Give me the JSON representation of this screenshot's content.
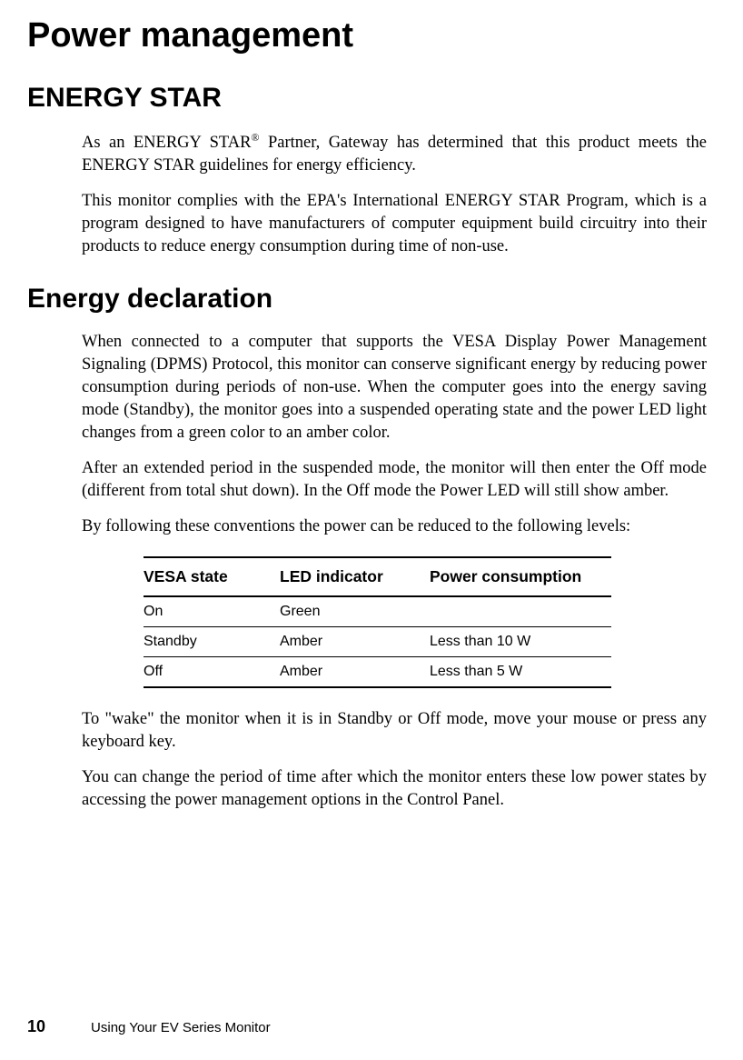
{
  "title": "Power management",
  "sections": {
    "energy_star": {
      "heading": "ENERGY STAR",
      "para1_pre": "As an ENERGY STAR",
      "para1_sup": "®",
      "para1_post": " Partner, Gateway has determined that this product meets the ENERGY STAR guidelines for energy efficiency.",
      "para2": "This monitor complies with the EPA's International ENERGY STAR Program, which is a program designed to have manufacturers of computer equipment build circuitry into their products to reduce energy consumption during time of non-use."
    },
    "energy_decl": {
      "heading": "Energy declaration",
      "para1": "When connected to a computer that supports the VESA Display Power Management Signaling (DPMS) Protocol, this monitor can conserve significant energy by reducing power consumption during periods of non-use. When the computer goes into the energy saving mode (Standby), the monitor goes into a suspended operating state and the power LED light changes from a green color to an amber color.",
      "para2": "After an extended period in the suspended mode, the monitor will then enter the Off mode (different from total shut down). In the Off mode the Power LED will still show amber.",
      "para3": "By following these conventions the power can be reduced to the following levels:",
      "para4": "To \"wake\" the monitor when it is in Standby or Off mode, move your mouse or press any keyboard key.",
      "para5": "You can change the period of time after which the monitor enters these low power states by accessing the power management options in the Control Panel."
    }
  },
  "table": {
    "headers": {
      "col1": "VESA state",
      "col2": "LED indicator",
      "col3": "Power consumption"
    },
    "rows": [
      {
        "vesa": "On",
        "led": "Green",
        "power": ""
      },
      {
        "vesa": "Standby",
        "led": "Amber",
        "power": "Less than 10 W"
      },
      {
        "vesa": "Off",
        "led": "Amber",
        "power": "Less than 5 W"
      }
    ]
  },
  "footer": {
    "page_num": "10",
    "text": "Using Your EV Series Monitor"
  }
}
